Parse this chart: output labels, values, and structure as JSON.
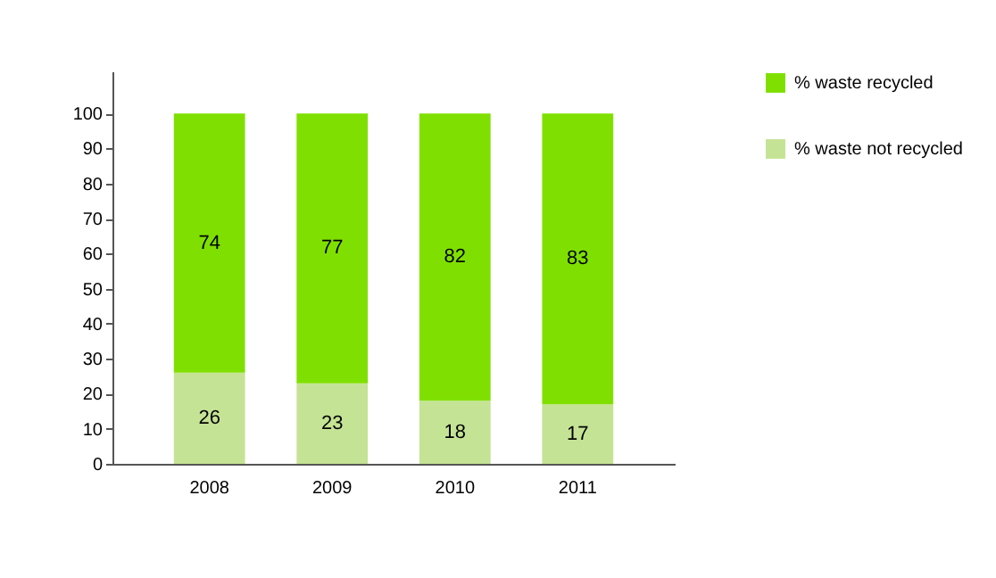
{
  "chart_data": {
    "type": "bar",
    "stacked": true,
    "categories": [
      "2008",
      "2009",
      "2010",
      "2011"
    ],
    "series": [
      {
        "name": "% waste not recycled",
        "color": "#c5e394",
        "values": [
          26,
          23,
          18,
          17
        ]
      },
      {
        "name": "% waste recycled",
        "color": "#7fe000",
        "values": [
          74,
          77,
          82,
          83
        ]
      }
    ],
    "ylim": [
      0,
      112
    ],
    "yticks": [
      0,
      10,
      20,
      30,
      40,
      50,
      60,
      70,
      80,
      90,
      100
    ],
    "grid": false,
    "legend": "right",
    "data_labels": true
  }
}
